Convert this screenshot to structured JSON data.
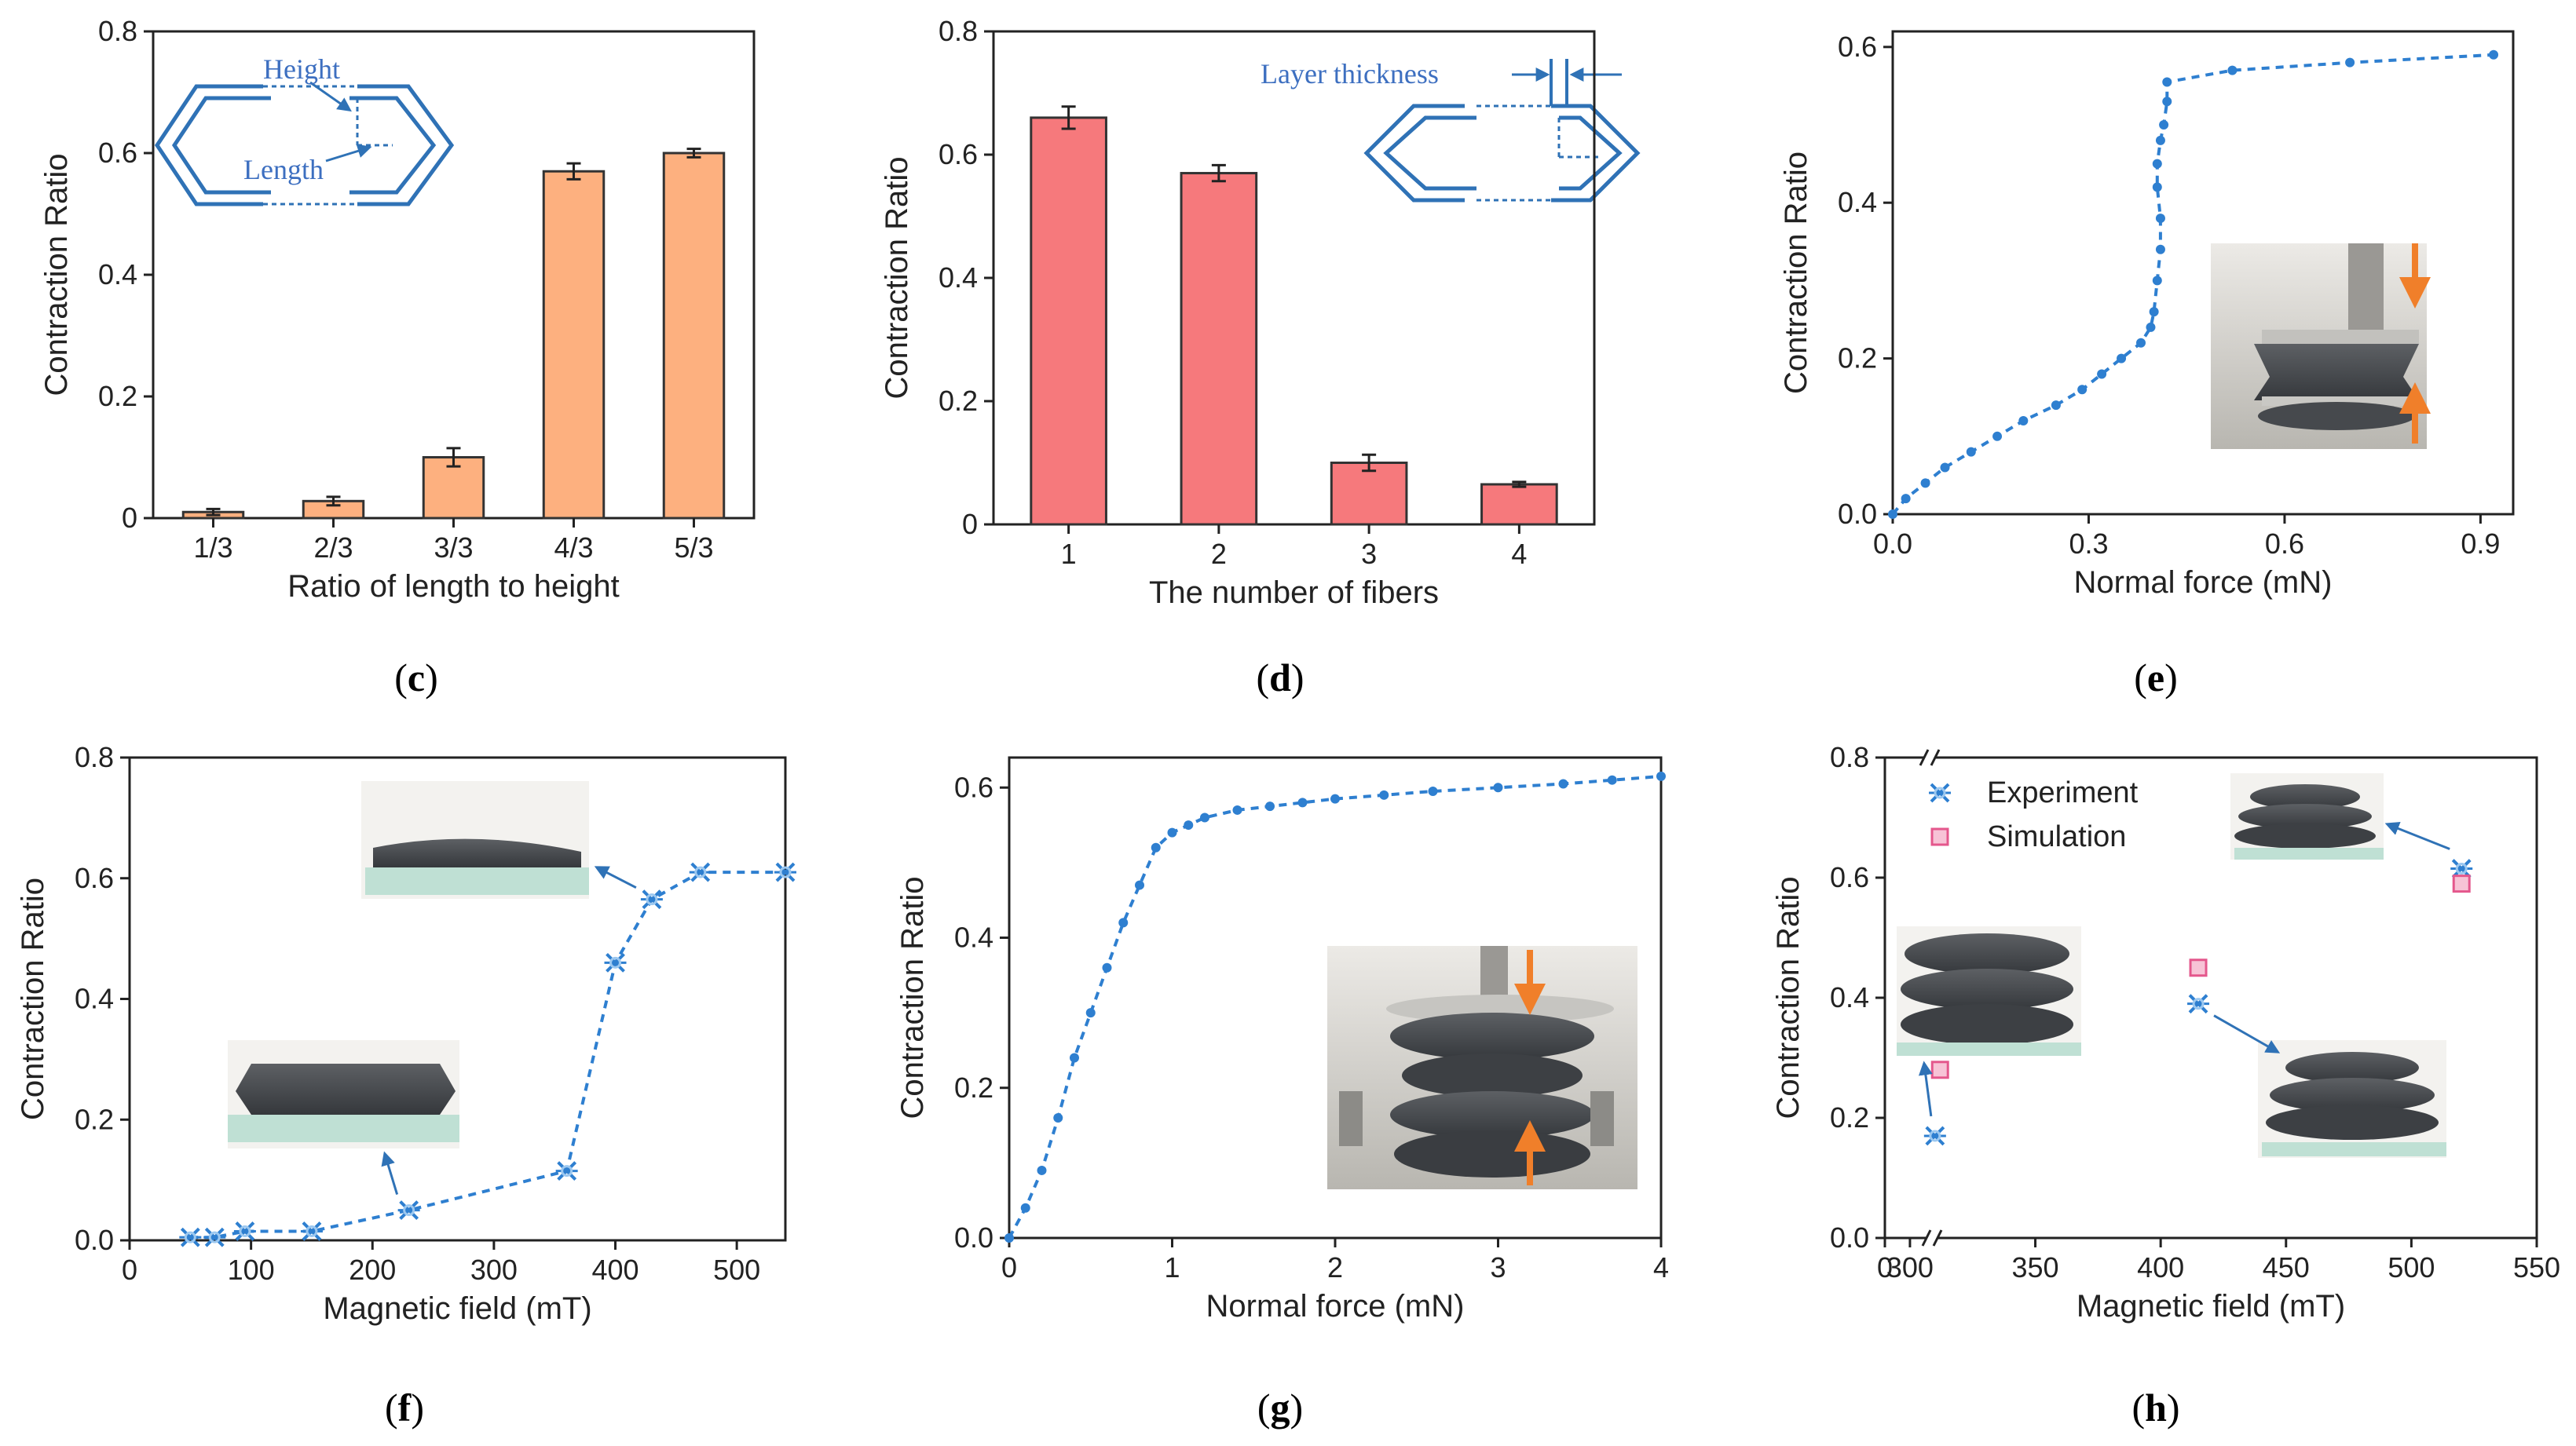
{
  "colors": {
    "bar_orange": "#fdb07f",
    "bar_red": "#f6797c",
    "line_blue": "#2e7fd0",
    "sim_pink": "#e4578c",
    "shape_blue": "#2f72b6"
  },
  "captions": [
    "c",
    "d",
    "e",
    "f",
    "g",
    "h"
  ],
  "panel_c": {
    "annotations": {
      "height": "Height",
      "length": "Length"
    }
  },
  "panel_d": {
    "annotations": {
      "layer": "Layer thickness"
    }
  },
  "panel_h": {
    "legend": {
      "experiment": "Experiment",
      "simulation": "Simulation"
    }
  },
  "chart_data": [
    {
      "panel": "c",
      "type": "bar",
      "xlabel": "Ratio of length to height",
      "ylabel": "Contraction Ratio",
      "categories": [
        "1/3",
        "2/3",
        "3/3",
        "4/3",
        "5/3"
      ],
      "values": [
        0.01,
        0.028,
        0.1,
        0.57,
        0.6
      ],
      "errors": [
        0.005,
        0.007,
        0.015,
        0.013,
        0.007
      ],
      "ylim": [
        0,
        0.8
      ],
      "yticks": [
        0,
        0.2,
        0.4,
        0.6,
        0.8
      ],
      "ytick_labels": [
        "0",
        "0.2",
        "0.4",
        "0.6",
        "0.8"
      ]
    },
    {
      "panel": "d",
      "type": "bar",
      "xlabel": "The number of fibers",
      "ylabel": "Contraction Ratio",
      "categories": [
        "1",
        "2",
        "3",
        "4"
      ],
      "values": [
        0.66,
        0.57,
        0.1,
        0.065
      ],
      "errors": [
        0.018,
        0.013,
        0.013,
        0.004
      ],
      "ylim": [
        0,
        0.8
      ],
      "yticks": [
        0,
        0.2,
        0.4,
        0.6,
        0.8
      ],
      "ytick_labels": [
        "0",
        "0.2",
        "0.4",
        "0.6",
        "0.8"
      ]
    },
    {
      "panel": "e",
      "type": "line",
      "xlabel": "Normal force (mN)",
      "ylabel": "Contraction Ratio",
      "x": [
        0,
        0.02,
        0.05,
        0.08,
        0.12,
        0.16,
        0.2,
        0.25,
        0.29,
        0.32,
        0.35,
        0.38,
        0.395,
        0.4,
        0.405,
        0.41,
        0.41,
        0.405,
        0.405,
        0.41,
        0.415,
        0.42,
        0.42,
        0.52,
        0.7,
        0.92
      ],
      "y": [
        0,
        0.02,
        0.04,
        0.06,
        0.08,
        0.1,
        0.12,
        0.14,
        0.16,
        0.18,
        0.2,
        0.22,
        0.24,
        0.26,
        0.3,
        0.34,
        0.38,
        0.42,
        0.45,
        0.48,
        0.5,
        0.53,
        0.555,
        0.57,
        0.58,
        0.59
      ],
      "xlim": [
        0,
        0.95
      ],
      "ylim": [
        0,
        0.62
      ],
      "xticks": [
        0,
        0.3,
        0.6,
        0.9
      ],
      "xtick_labels": [
        "0.0",
        "0.3",
        "0.6",
        "0.9"
      ],
      "yticks": [
        0,
        0.2,
        0.4,
        0.6
      ],
      "ytick_labels": [
        "0.0",
        "0.2",
        "0.4",
        "0.6"
      ]
    },
    {
      "panel": "f",
      "type": "line",
      "xlabel": "Magnetic field (mT)",
      "ylabel": "Contraction Ratio",
      "x": [
        50,
        70,
        95,
        150,
        230,
        360,
        400,
        430,
        470,
        540
      ],
      "y": [
        0.005,
        0.005,
        0.015,
        0.015,
        0.05,
        0.115,
        0.46,
        0.565,
        0.61,
        0.61
      ],
      "xlim": [
        0,
        540
      ],
      "ylim": [
        0,
        0.8
      ],
      "xticks": [
        0,
        100,
        200,
        300,
        400,
        500
      ],
      "xtick_labels": [
        "0",
        "100",
        "200",
        "300",
        "400",
        "500"
      ],
      "yticks": [
        0,
        0.2,
        0.4,
        0.6,
        0.8
      ],
      "ytick_labels": [
        "0.0",
        "0.2",
        "0.4",
        "0.6",
        "0.8"
      ]
    },
    {
      "panel": "g",
      "type": "line",
      "xlabel": "Normal force (mN)",
      "ylabel": "Contraction Ratio",
      "x": [
        0,
        0.1,
        0.2,
        0.3,
        0.4,
        0.5,
        0.6,
        0.7,
        0.8,
        0.9,
        1.0,
        1.1,
        1.2,
        1.4,
        1.6,
        1.8,
        2.0,
        2.3,
        2.6,
        3.0,
        3.4,
        3.7,
        4.0
      ],
      "y": [
        0.0,
        0.04,
        0.09,
        0.16,
        0.24,
        0.3,
        0.36,
        0.42,
        0.47,
        0.52,
        0.54,
        0.55,
        0.56,
        0.57,
        0.575,
        0.58,
        0.585,
        0.59,
        0.595,
        0.6,
        0.605,
        0.61,
        0.615
      ],
      "xlim": [
        0,
        4
      ],
      "ylim": [
        0,
        0.64
      ],
      "xticks": [
        0,
        1,
        2,
        3,
        4
      ],
      "xtick_labels": [
        "0",
        "1",
        "2",
        "3",
        "4"
      ],
      "yticks": [
        0,
        0.2,
        0.4,
        0.6
      ],
      "ytick_labels": [
        "0.0",
        "0.2",
        "0.4",
        "0.6"
      ]
    },
    {
      "panel": "h",
      "type": "scatter",
      "xlabel": "Magnetic field (mT)",
      "ylabel": "Contraction Ratio",
      "series": [
        {
          "name": "Experiment",
          "x": [
            310,
            415,
            520
          ],
          "y": [
            0.17,
            0.39,
            0.615
          ]
        },
        {
          "name": "Simulation",
          "x": [
            312,
            415,
            520
          ],
          "y": [
            0.28,
            0.45,
            0.59
          ]
        }
      ],
      "xlim": [
        290,
        550
      ],
      "ylim": [
        0,
        0.8
      ],
      "xticks": [
        300,
        350,
        400,
        450,
        500,
        550
      ],
      "xtick_labels": [
        "300",
        "350",
        "400",
        "450",
        "500",
        "550"
      ],
      "x_break_label": "0",
      "yticks": [
        0,
        0.2,
        0.4,
        0.6,
        0.8
      ],
      "ytick_labels": [
        "0.0",
        "0.2",
        "0.4",
        "0.6",
        "0.8"
      ]
    }
  ]
}
